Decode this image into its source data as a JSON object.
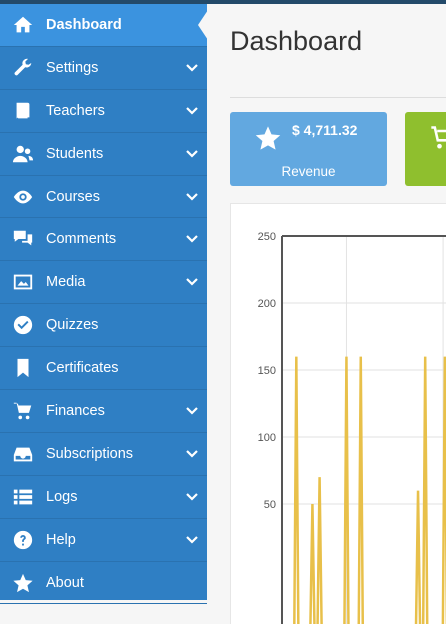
{
  "sidebar": {
    "items": [
      {
        "label": "Dashboard",
        "icon": "home-icon",
        "active": true,
        "has_chevron": false
      },
      {
        "label": "Settings",
        "icon": "wrench-icon",
        "active": false,
        "has_chevron": true
      },
      {
        "label": "Teachers",
        "icon": "book-icon",
        "active": false,
        "has_chevron": true
      },
      {
        "label": "Students",
        "icon": "students-icon",
        "active": false,
        "has_chevron": true
      },
      {
        "label": "Courses",
        "icon": "eye-icon",
        "active": false,
        "has_chevron": true
      },
      {
        "label": "Comments",
        "icon": "comments-icon",
        "active": false,
        "has_chevron": true
      },
      {
        "label": "Media",
        "icon": "image-icon",
        "active": false,
        "has_chevron": true
      },
      {
        "label": "Quizzes",
        "icon": "check-circle-icon",
        "active": false,
        "has_chevron": false
      },
      {
        "label": "Certificates",
        "icon": "bookmark-icon",
        "active": false,
        "has_chevron": false
      },
      {
        "label": "Finances",
        "icon": "cart-icon",
        "active": false,
        "has_chevron": true
      },
      {
        "label": "Subscriptions",
        "icon": "inbox-icon",
        "active": false,
        "has_chevron": true
      },
      {
        "label": "Logs",
        "icon": "list-icon",
        "active": false,
        "has_chevron": true
      },
      {
        "label": "Help",
        "icon": "question-icon",
        "active": false,
        "has_chevron": true
      },
      {
        "label": "About",
        "icon": "star-icon",
        "active": false,
        "has_chevron": false
      }
    ]
  },
  "header": {
    "title": "Dashboard"
  },
  "cards": {
    "revenue": {
      "value": "$ 4,711.32",
      "label": "Revenue",
      "icon": "star-icon",
      "color": "#62a8e0"
    },
    "sales": {
      "icon": "cart-icon",
      "color": "#8fbf2e"
    }
  },
  "chart_data": {
    "type": "line",
    "yticks": [
      50,
      100,
      150,
      200,
      250
    ],
    "ylim": [
      0,
      250
    ],
    "grid": true,
    "series_color": "#e8c04a",
    "spikes": [
      {
        "x": 0.08,
        "y": 160
      },
      {
        "x": 0.17,
        "y": 50
      },
      {
        "x": 0.21,
        "y": 70
      },
      {
        "x": 0.36,
        "y": 160
      },
      {
        "x": 0.44,
        "y": 160
      },
      {
        "x": 0.76,
        "y": 60
      },
      {
        "x": 0.8,
        "y": 160
      },
      {
        "x": 0.91,
        "y": 160
      }
    ]
  }
}
